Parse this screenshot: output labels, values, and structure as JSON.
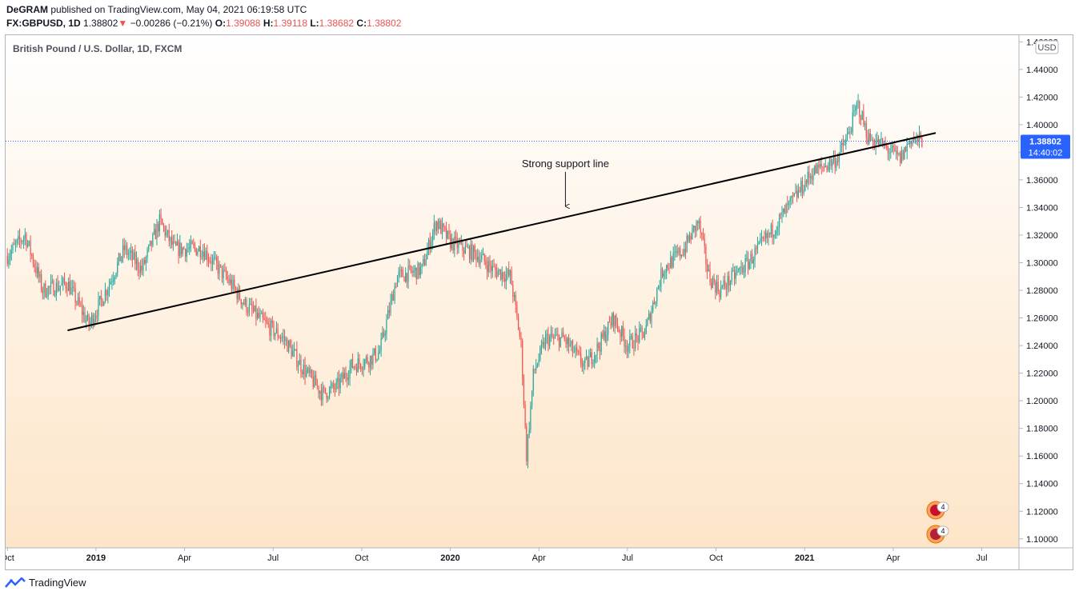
{
  "header": {
    "publisher": "DeGRAM",
    "published_text": "published on TradingView.com, May 04, 2021 06:19:58 UTC",
    "symbol": "FX:GBPUSD, 1D",
    "last": "1.38802",
    "change_arrow": "▼",
    "change": "−0.00286 (−0.21%)",
    "o_label": "O:",
    "o_value": "1.39088",
    "h_label": "H:",
    "h_value": "1.39118",
    "l_label": "L:",
    "l_value": "1.38682",
    "c_label": "C:",
    "c_value": "1.38802"
  },
  "chart_data": {
    "type": "candlestick",
    "title": "British Pound / U.S. Dollar, 1D, FXCM",
    "currency_badge": "USD",
    "x_ticks": [
      {
        "label": "Oct",
        "t": 2018.75,
        "bold": false
      },
      {
        "label": "2019",
        "t": 2019.0,
        "bold": true
      },
      {
        "label": "Apr",
        "t": 2019.25,
        "bold": false
      },
      {
        "label": "Jul",
        "t": 2019.5,
        "bold": false
      },
      {
        "label": "Oct",
        "t": 2019.75,
        "bold": false
      },
      {
        "label": "2020",
        "t": 2020.0,
        "bold": true
      },
      {
        "label": "Apr",
        "t": 2020.25,
        "bold": false
      },
      {
        "label": "Jul",
        "t": 2020.5,
        "bold": false
      },
      {
        "label": "Oct",
        "t": 2020.75,
        "bold": false
      },
      {
        "label": "2021",
        "t": 2021.0,
        "bold": true
      },
      {
        "label": "Apr",
        "t": 2021.25,
        "bold": false
      },
      {
        "label": "Jul",
        "t": 2021.5,
        "bold": false
      }
    ],
    "y_ticks": [
      "1.10000",
      "1.12000",
      "1.14000",
      "1.16000",
      "1.18000",
      "1.20000",
      "1.22000",
      "1.24000",
      "1.26000",
      "1.28000",
      "1.30000",
      "1.32000",
      "1.34000",
      "1.36000",
      "1.38000",
      "1.40000",
      "1.42000",
      "1.44000",
      "1.46000"
    ],
    "x_range": [
      2018.745,
      2021.605
    ],
    "y_range": [
      1.0935,
      1.4648
    ],
    "price_path": [
      [
        2018.75,
        1.305
      ],
      [
        2018.8,
        1.32
      ],
      [
        2018.85,
        1.28
      ],
      [
        2018.92,
        1.285
      ],
      [
        2018.98,
        1.255
      ],
      [
        2019.02,
        1.275
      ],
      [
        2019.08,
        1.31
      ],
      [
        2019.13,
        1.295
      ],
      [
        2019.18,
        1.33
      ],
      [
        2019.22,
        1.31
      ],
      [
        2019.3,
        1.31
      ],
      [
        2019.38,
        1.285
      ],
      [
        2019.42,
        1.27
      ],
      [
        2019.48,
        1.255
      ],
      [
        2019.53,
        1.245
      ],
      [
        2019.58,
        1.225
      ],
      [
        2019.64,
        1.205
      ],
      [
        2019.68,
        1.21
      ],
      [
        2019.72,
        1.225
      ],
      [
        2019.77,
        1.23
      ],
      [
        2019.8,
        1.235
      ],
      [
        2019.85,
        1.29
      ],
      [
        2019.92,
        1.295
      ],
      [
        2019.96,
        1.33
      ],
      [
        2020.0,
        1.315
      ],
      [
        2020.08,
        1.305
      ],
      [
        2020.12,
        1.295
      ],
      [
        2020.17,
        1.29
      ],
      [
        2020.2,
        1.24
      ],
      [
        2020.215,
        1.16
      ],
      [
        2020.235,
        1.22
      ],
      [
        2020.27,
        1.245
      ],
      [
        2020.32,
        1.245
      ],
      [
        2020.38,
        1.225
      ],
      [
        2020.42,
        1.24
      ],
      [
        2020.46,
        1.26
      ],
      [
        2020.5,
        1.24
      ],
      [
        2020.55,
        1.25
      ],
      [
        2020.6,
        1.295
      ],
      [
        2020.66,
        1.31
      ],
      [
        2020.7,
        1.33
      ],
      [
        2020.73,
        1.29
      ],
      [
        2020.76,
        1.28
      ],
      [
        2020.8,
        1.29
      ],
      [
        2020.84,
        1.3
      ],
      [
        2020.9,
        1.32
      ],
      [
        2020.94,
        1.335
      ],
      [
        2020.98,
        1.35
      ],
      [
        2021.02,
        1.365
      ],
      [
        2021.09,
        1.375
      ],
      [
        2021.12,
        1.39
      ],
      [
        2021.15,
        1.415
      ],
      [
        2021.18,
        1.39
      ],
      [
        2021.22,
        1.385
      ],
      [
        2021.27,
        1.375
      ],
      [
        2021.3,
        1.39
      ],
      [
        2021.335,
        1.388
      ]
    ],
    "annotations": {
      "trendline": [
        [
          2018.92,
          1.251
        ],
        [
          2021.37,
          1.394
        ]
      ],
      "trendline_label": "Strong support line",
      "arrow_at": [
        2020.325,
        1.338
      ]
    },
    "last_price": {
      "value": 1.38802,
      "label": "1.38802",
      "countdown": "14:40:02"
    },
    "event_badges": [
      {
        "count": "4"
      },
      {
        "count": "4"
      }
    ],
    "colors": {
      "up": "#26a69a",
      "down": "#ef5350",
      "last_badge": "#2962ff",
      "trendline": "#000000",
      "bg_top": "#ffffff",
      "bg_bottom": "#fde5c8"
    }
  },
  "footer": {
    "brand": "TradingView"
  }
}
